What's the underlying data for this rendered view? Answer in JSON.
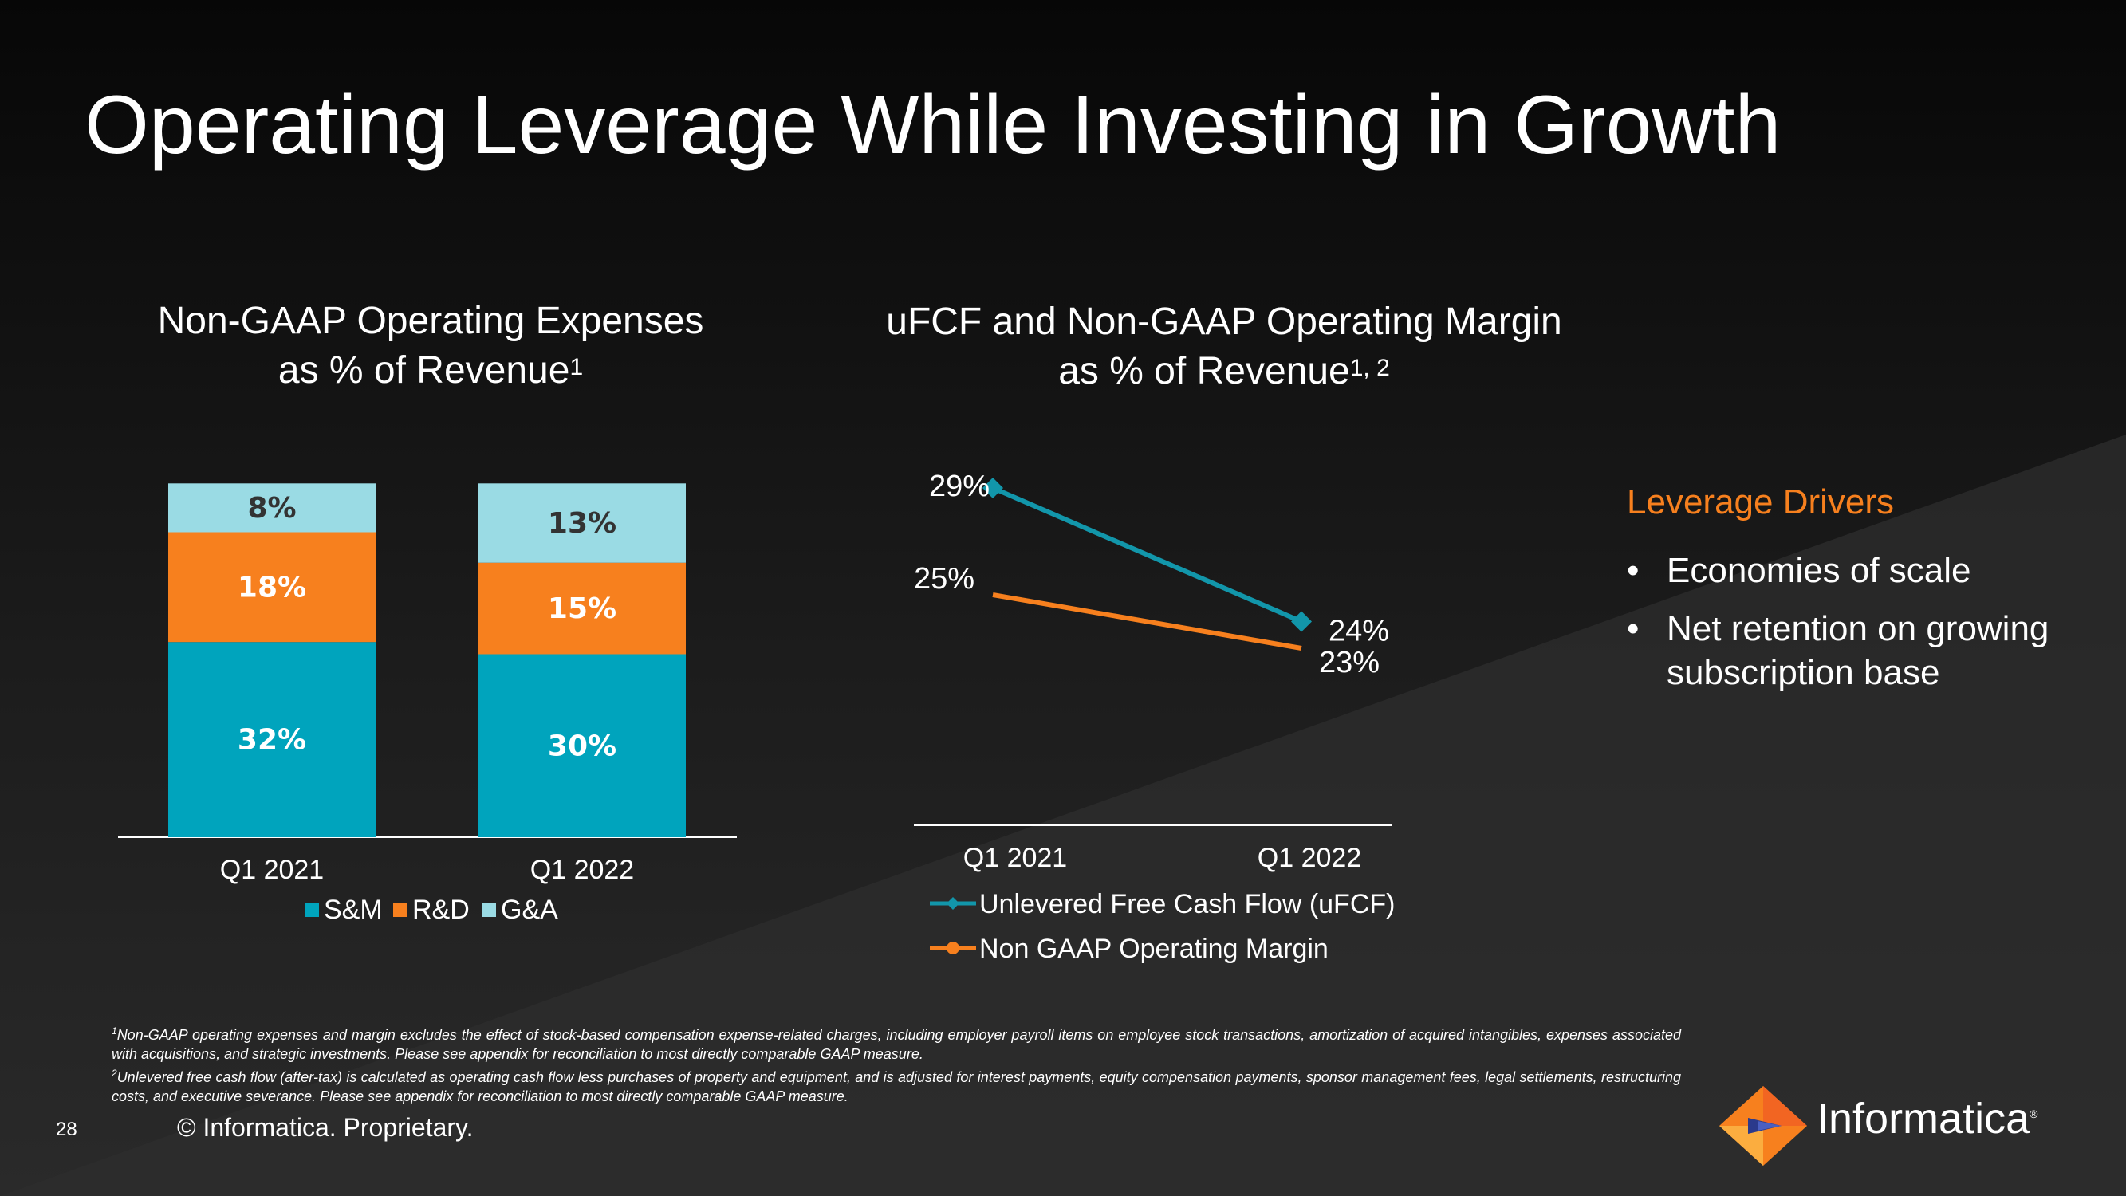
{
  "slide": {
    "title": "Operating Leverage While Investing in Growth",
    "page_number": "28",
    "copyright": "© Informatica. Proprietary.",
    "logo_text": "Informatica",
    "logo_mark": "®"
  },
  "left_chart": {
    "title_line1": "Non-GAAP Operating Expenses",
    "title_line2": "as % of Revenue",
    "title_sup": "1"
  },
  "right_chart": {
    "title_line1": "uFCF and Non-GAAP Operating Margin",
    "title_line2": "as % of Revenue",
    "title_sup": "1, 2"
  },
  "drivers": {
    "title": "Leverage Drivers",
    "items": [
      "Economies of scale",
      "Net retention on growing subscription base"
    ]
  },
  "footnotes": {
    "note1_marker": "1",
    "note1": "Non-GAAP operating expenses and margin excludes the effect of stock-based compensation expense-related charges, including employer payroll items on employee stock transactions, amortization of acquired intangibles, expenses associated with acquisitions, and strategic investments. Please see appendix for reconciliation to most directly comparable GAAP measure.",
    "note2_marker": "2",
    "note2": "Unlevered free cash flow (after-tax) is calculated as operating cash flow less purchases of property and equipment, and is adjusted for interest payments, equity compensation payments, sponsor management fees, legal settlements, restructuring costs, and executive severance. Please see appendix for reconciliation to most directly comparable GAAP measure."
  },
  "colors": {
    "teal": "#00a4bd",
    "orange": "#f7801e",
    "light_blue": "#9adbe4",
    "line_teal": "#1296aa"
  },
  "chart_data": [
    {
      "type": "bar",
      "stacked": true,
      "categories": [
        "Q1 2021",
        "Q1 2022"
      ],
      "series": [
        {
          "name": "S&M",
          "values": [
            32,
            30
          ],
          "labels": [
            "32%",
            "30%"
          ],
          "color": "#00a4bd"
        },
        {
          "name": "R&D",
          "values": [
            18,
            15
          ],
          "labels": [
            "18%",
            "15%"
          ],
          "color": "#f7801e"
        },
        {
          "name": "G&A",
          "values": [
            8,
            13
          ],
          "labels": [
            "8%",
            "13%"
          ],
          "color": "#9adbe4"
        }
      ],
      "legend": "bottom"
    },
    {
      "type": "line",
      "x": [
        "Q1 2021",
        "Q1 2022"
      ],
      "series": [
        {
          "name": "Unlevered Free Cash Flow (uFCF)",
          "values": [
            29,
            24
          ],
          "labels": [
            "29%",
            "24%"
          ],
          "color": "#1296aa",
          "marker": "diamond"
        },
        {
          "name": "Non GAAP Operating Margin",
          "values": [
            25,
            23
          ],
          "labels": [
            "25%",
            "23%"
          ],
          "color": "#f7801e",
          "marker": "circle"
        }
      ],
      "legend": "bottom"
    }
  ]
}
